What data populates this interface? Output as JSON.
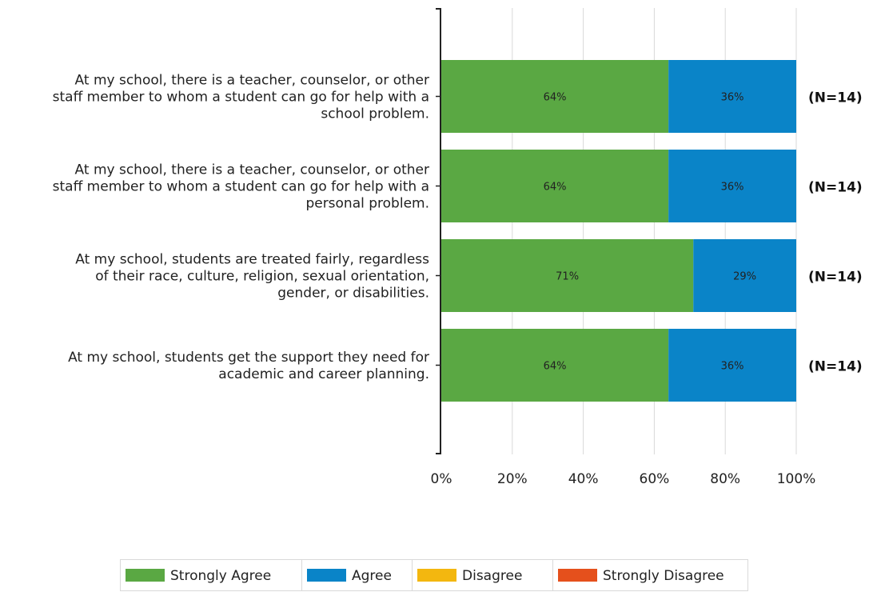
{
  "chart_data": {
    "type": "bar",
    "orientation": "horizontal",
    "stacked": true,
    "categories": [
      [
        "At my school, there is a teacher, counselor, or other",
        "staff member to whom a student can go for help with a",
        "school problem."
      ],
      [
        "At my school, there is a teacher, counselor, or other",
        "staff member to whom a student can go for help with a",
        "personal problem."
      ],
      [
        "At my school, students are treated fairly, regardless",
        "of their race, culture, religion, sexual orientation,",
        "gender, or disabilities."
      ],
      [
        "At my school, students get the support they need for",
        "academic and career planning."
      ]
    ],
    "series": [
      {
        "name": "Strongly Agree",
        "color": "#5aa843",
        "values": [
          64,
          64,
          71,
          64
        ],
        "labels": [
          "64%",
          "64%",
          "71%",
          "64%"
        ]
      },
      {
        "name": "Agree",
        "color": "#0a84c8",
        "values": [
          36,
          36,
          29,
          36
        ],
        "labels": [
          "36%",
          "36%",
          "29%",
          "36%"
        ]
      },
      {
        "name": "Disagree",
        "color": "#f3b70f",
        "values": [
          0,
          0,
          0,
          0
        ],
        "labels": [
          "",
          "",
          "",
          ""
        ]
      },
      {
        "name": "Strongly Disagree",
        "color": "#e5501c",
        "values": [
          0,
          0,
          0,
          0
        ],
        "labels": [
          "",
          "",
          "",
          ""
        ]
      }
    ],
    "n_labels": [
      "(N=14)",
      "(N=14)",
      "(N=14)",
      "(N=14)"
    ],
    "xlim": [
      0,
      100
    ],
    "xticks": [
      0,
      20,
      40,
      60,
      80,
      100
    ],
    "xtick_labels": [
      "0%",
      "20%",
      "40%",
      "60%",
      "80%",
      "100%"
    ],
    "grid": true,
    "legend_position": "bottom"
  }
}
